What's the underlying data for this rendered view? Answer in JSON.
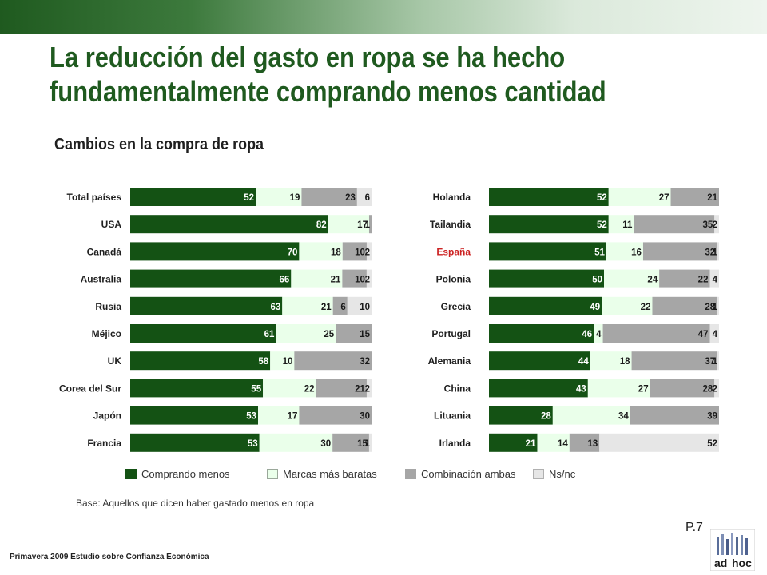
{
  "header": {
    "title_line1": "La reducción del gasto en ropa se ha hecho",
    "title_line2": "fundamentalmente comprando menos cantidad",
    "subtitle": "Cambios en la compra de ropa"
  },
  "colors": {
    "brand_green": "#1f5a1f",
    "highlight_red": "#cc2222"
  },
  "chart_data": {
    "type": "bar",
    "orientation": "horizontal",
    "stacked": true,
    "percent": true,
    "series_names": [
      "Comprando menos",
      "Marcas más baratas",
      "Combinación ambas",
      "Ns/nc"
    ],
    "series_colors": [
      "#145214",
      "#eaffea",
      "#a6a6a6",
      "#e6e6e6"
    ],
    "panels": [
      {
        "categories": [
          "Total países",
          "USA",
          "Canadá",
          "Australia",
          "Rusia",
          "Méjico",
          "UK",
          "Corea del Sur",
          "Japón",
          "Francia"
        ],
        "rows": [
          [
            52,
            19,
            23,
            6
          ],
          [
            82,
            17,
            1,
            0
          ],
          [
            70,
            18,
            10,
            2
          ],
          [
            66,
            21,
            10,
            2
          ],
          [
            63,
            21,
            6,
            10
          ],
          [
            61,
            25,
            15,
            0
          ],
          [
            58,
            10,
            32,
            0
          ],
          [
            55,
            22,
            21,
            2
          ],
          [
            53,
            17,
            30,
            0
          ],
          [
            53,
            30,
            15,
            1
          ]
        ],
        "highlight": []
      },
      {
        "categories": [
          "Holanda",
          "Tailandia",
          "España",
          "Polonia",
          "Grecia",
          "Portugal",
          "Alemania",
          "China",
          "Lituania",
          "Irlanda"
        ],
        "rows": [
          [
            52,
            27,
            21,
            0
          ],
          [
            52,
            11,
            35,
            2
          ],
          [
            51,
            16,
            32,
            1
          ],
          [
            50,
            24,
            22,
            4
          ],
          [
            49,
            22,
            28,
            1
          ],
          [
            46,
            4,
            47,
            4
          ],
          [
            44,
            18,
            37,
            1
          ],
          [
            43,
            27,
            28,
            2
          ],
          [
            28,
            34,
            39,
            0
          ],
          [
            21,
            14,
            13,
            52
          ]
        ],
        "highlight": [
          "España"
        ]
      }
    ]
  },
  "legend": {
    "items": [
      "Comprando menos",
      "Marcas más baratas",
      "Combinación ambas",
      "Ns/nc"
    ]
  },
  "notes": {
    "base": "Base: Aquellos que dicen haber gastado menos en ropa",
    "page": "P.7",
    "footer": "Primavera 2009 Estudio sobre Confianza Económica"
  },
  "logo": {
    "text_left": "ad",
    "text_right": "hoc"
  }
}
